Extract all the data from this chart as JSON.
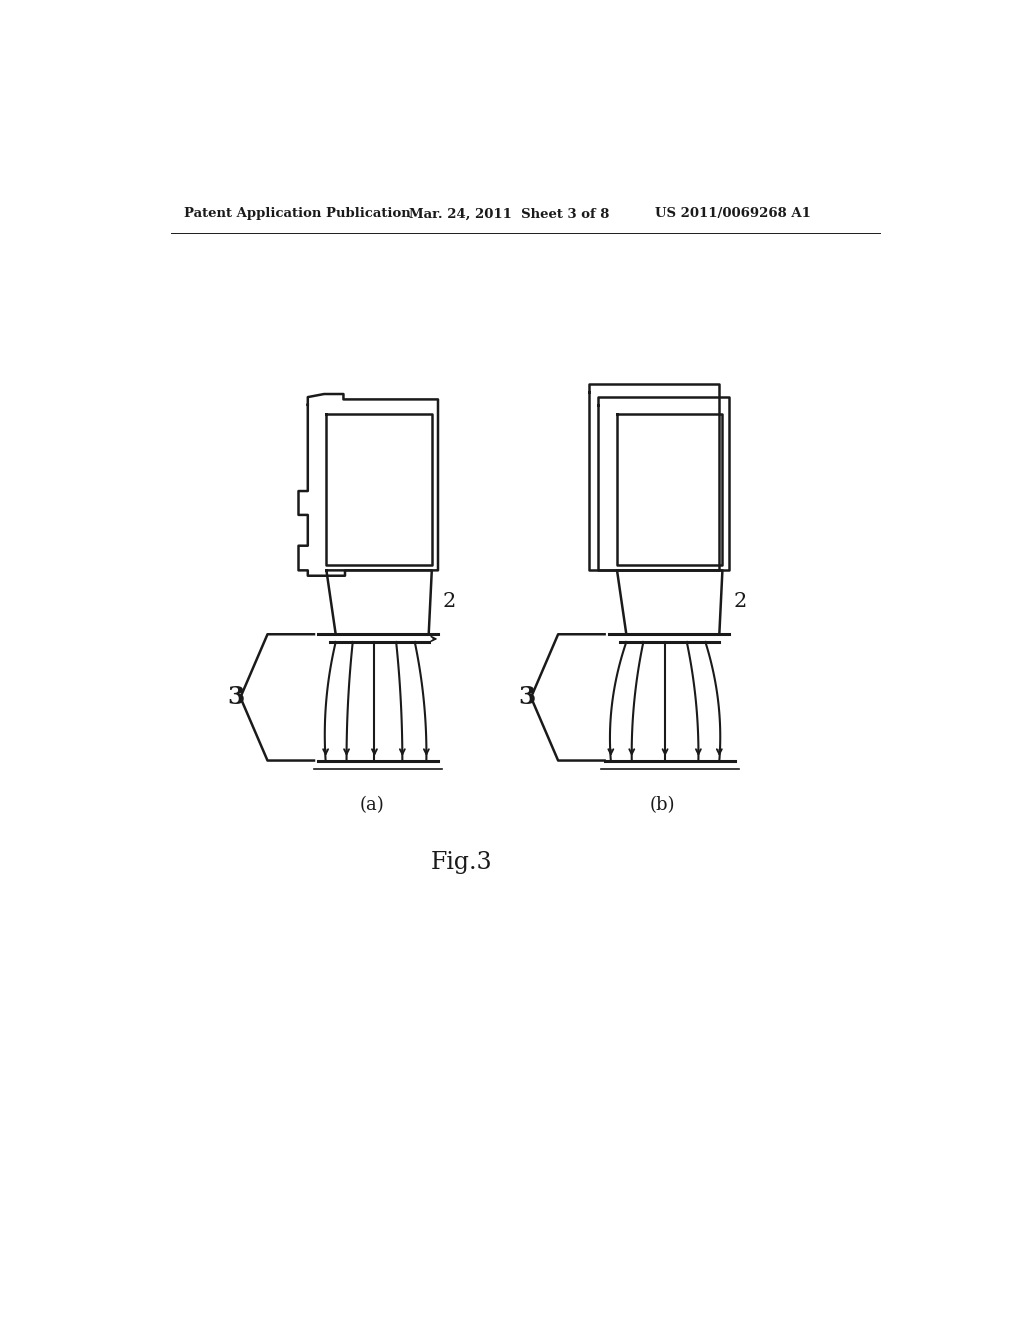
{
  "bg_color": "#ffffff",
  "line_color": "#1a1a1a",
  "header_left": "Patent Application Publication",
  "header_mid": "Mar. 24, 2011  Sheet 3 of 8",
  "header_right": "US 2011/0069268 A1",
  "fig_label": "Fig.3",
  "sub_a": "(a)",
  "sub_b": "(b)",
  "label_2a": "2",
  "label_3a": "3",
  "label_2b": "2",
  "label_3b": "3"
}
